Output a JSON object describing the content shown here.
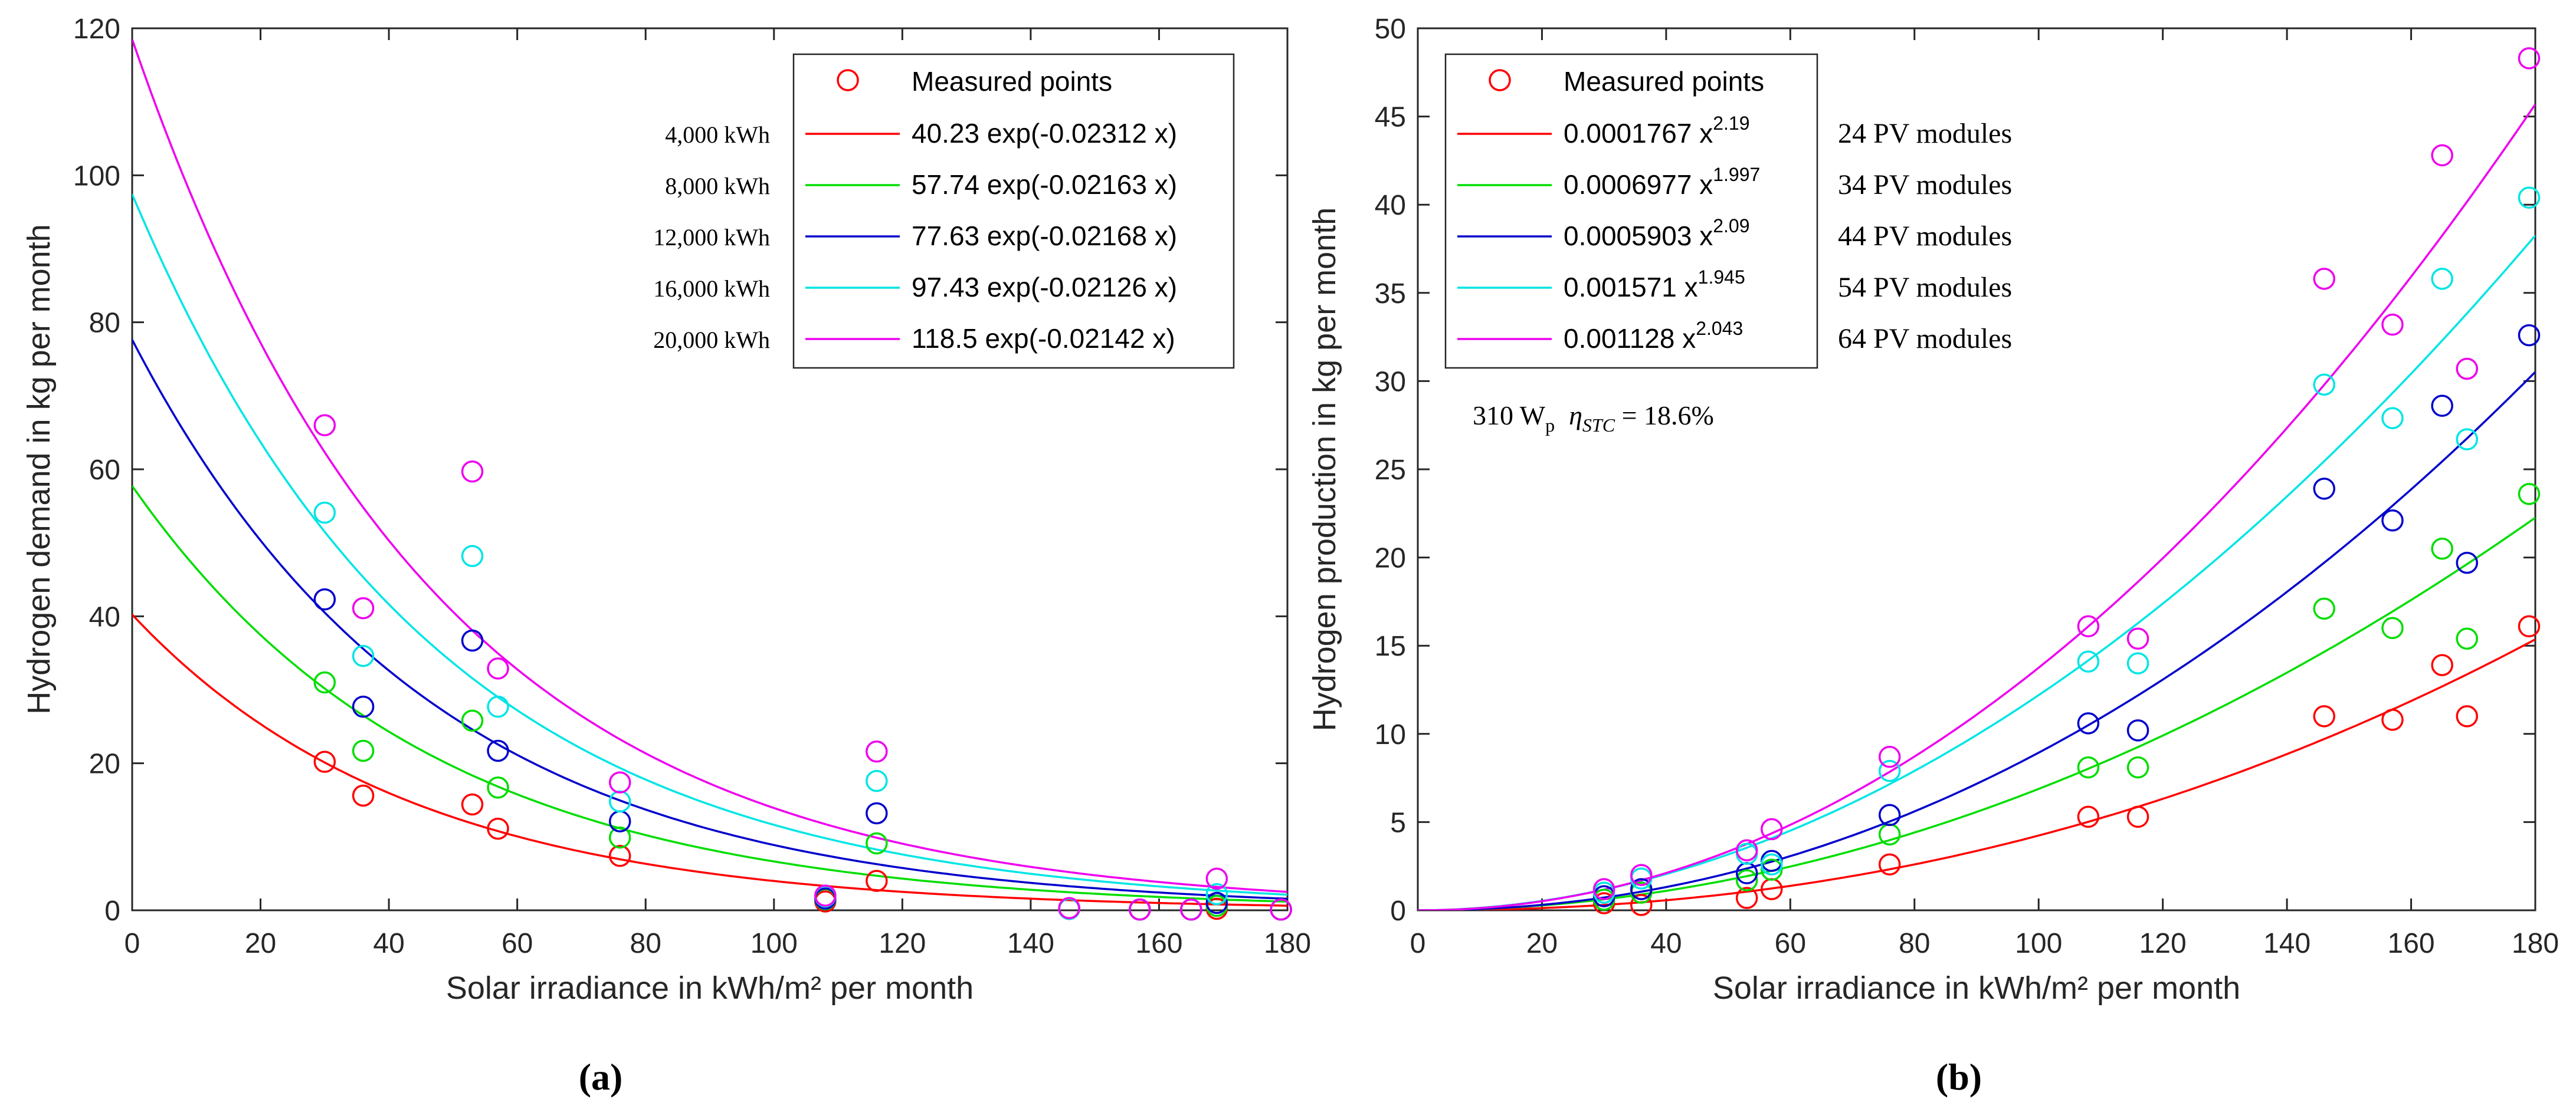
{
  "chart_data": [
    {
      "type": "scatter",
      "id": "a",
      "panel_label": "(a)",
      "xlabel": "Solar irradiance in kWh/m² per month",
      "ylabel": "Hydrogen demand in kg per month",
      "xlim": [
        0,
        180
      ],
      "ylim": [
        0,
        120
      ],
      "xticks": [
        0,
        20,
        40,
        60,
        80,
        100,
        120,
        140,
        160,
        180
      ],
      "yticks": [
        0,
        20,
        40,
        60,
        80,
        100,
        120
      ],
      "grid": false,
      "legend_position": "top-right",
      "legend_measured": "Measured points",
      "x": [
        30,
        36,
        53,
        57,
        76,
        108,
        116,
        146,
        157,
        165,
        169,
        179
      ],
      "series": [
        {
          "name": "4,000 kWh",
          "color": "#ff0000",
          "fit_model": "exp",
          "a": 40.23,
          "b": -0.02312,
          "fit_label": "40.23 exp(-0.02312 x)",
          "values": [
            20.2,
            15.6,
            14.4,
            11.1,
            7.4,
            1.2,
            4.0,
            0.2,
            0.1,
            0.1,
            0.2,
            0.1
          ]
        },
        {
          "name": "8,000 kWh",
          "color": "#00dd00",
          "fit_model": "exp",
          "a": 57.74,
          "b": -0.02163,
          "fit_label": "57.74 exp(-0.02163 x)",
          "values": [
            31.0,
            21.7,
            25.8,
            16.7,
            9.9,
            1.5,
            9.1,
            0.2,
            0.1,
            0.1,
            0.6,
            0.1
          ]
        },
        {
          "name": "12,000 kWh",
          "color": "#0000cc",
          "fit_model": "exp",
          "a": 77.63,
          "b": -0.02168,
          "fit_label": "77.63 exp(-0.02168 x)",
          "values": [
            42.3,
            27.7,
            36.7,
            21.7,
            12.1,
            1.6,
            13.2,
            0.2,
            0.1,
            0.1,
            1.0,
            0.1
          ]
        },
        {
          "name": "16,000 kWh",
          "color": "#00e5e5",
          "fit_model": "exp",
          "a": 97.43,
          "b": -0.02126,
          "fit_label": "97.43 exp(-0.02126 x)",
          "values": [
            54.1,
            34.6,
            48.2,
            27.7,
            14.8,
            1.9,
            17.6,
            0.2,
            0.1,
            0.1,
            2.2,
            0.1
          ]
        },
        {
          "name": "20,000 kWh",
          "color": "#ee00ee",
          "fit_model": "exp",
          "a": 118.5,
          "b": -0.02142,
          "fit_label": "118.5 exp(-0.02142 x)",
          "values": [
            66.0,
            41.1,
            59.7,
            32.9,
            17.4,
            2.0,
            21.6,
            0.3,
            0.1,
            0.1,
            4.3,
            0.1
          ]
        }
      ]
    },
    {
      "type": "scatter",
      "id": "b",
      "panel_label": "(b)",
      "xlabel": "Solar irradiance in kWh/m² per month",
      "ylabel": "Hydrogen production in kg per month",
      "xlim": [
        0,
        180
      ],
      "ylim": [
        0,
        50
      ],
      "xticks": [
        0,
        20,
        40,
        60,
        80,
        100,
        120,
        140,
        160,
        180
      ],
      "yticks": [
        0,
        5,
        10,
        15,
        20,
        25,
        30,
        35,
        40,
        45,
        50
      ],
      "grid": false,
      "legend_position": "top-left",
      "legend_measured": "Measured points",
      "annotation_prefix": "310 W",
      "annotation_sub": "p",
      "annotation_eta": "η",
      "annotation_eta_sub": "STC",
      "annotation_value": " = 18.6%",
      "x": [
        30,
        36,
        53,
        57,
        76,
        108,
        116,
        146,
        157,
        165,
        169,
        179
      ],
      "series": [
        {
          "name": "24 PV modules",
          "color": "#ff0000",
          "fit_model": "power",
          "a": 0.0001767,
          "b": 2.19,
          "fit_coef": "0.0001767 x",
          "fit_exp": "2.19",
          "values": [
            0.4,
            0.3,
            0.7,
            1.2,
            2.6,
            5.3,
            5.3,
            11.0,
            10.8,
            13.9,
            11.0,
            16.1
          ]
        },
        {
          "name": "34 PV modules",
          "color": "#00dd00",
          "fit_model": "power",
          "a": 0.0006977,
          "b": 1.997,
          "fit_coef": "0.0006977 x",
          "fit_exp": "1.997",
          "values": [
            0.6,
            1.0,
            1.7,
            2.3,
            4.3,
            8.1,
            8.1,
            17.1,
            16.0,
            20.5,
            15.4,
            23.6
          ]
        },
        {
          "name": "44 PV modules",
          "color": "#0000cc",
          "fit_model": "power",
          "a": 0.0005903,
          "b": 2.09,
          "fit_coef": "0.0005903 x",
          "fit_exp": "2.09",
          "values": [
            0.8,
            1.2,
            2.1,
            2.8,
            5.4,
            10.6,
            10.2,
            23.9,
            22.1,
            28.6,
            19.7,
            32.6
          ]
        },
        {
          "name": "54 PV modules",
          "color": "#00e5e5",
          "fit_model": "power",
          "a": 0.001571,
          "b": 1.945,
          "fit_coef": "0.001571 x",
          "fit_exp": "1.945",
          "values": [
            1.0,
            1.8,
            3.2,
            2.6,
            7.9,
            14.1,
            14.0,
            29.8,
            27.9,
            35.8,
            26.7,
            40.4
          ]
        },
        {
          "name": "64 PV modules",
          "color": "#ee00ee",
          "fit_model": "power",
          "a": 0.001128,
          "b": 2.043,
          "fit_coef": "0.001128 x",
          "fit_exp": "2.043",
          "values": [
            1.2,
            2.0,
            3.4,
            4.6,
            8.7,
            16.1,
            15.4,
            35.8,
            33.2,
            42.8,
            30.7,
            48.3
          ]
        }
      ]
    }
  ]
}
